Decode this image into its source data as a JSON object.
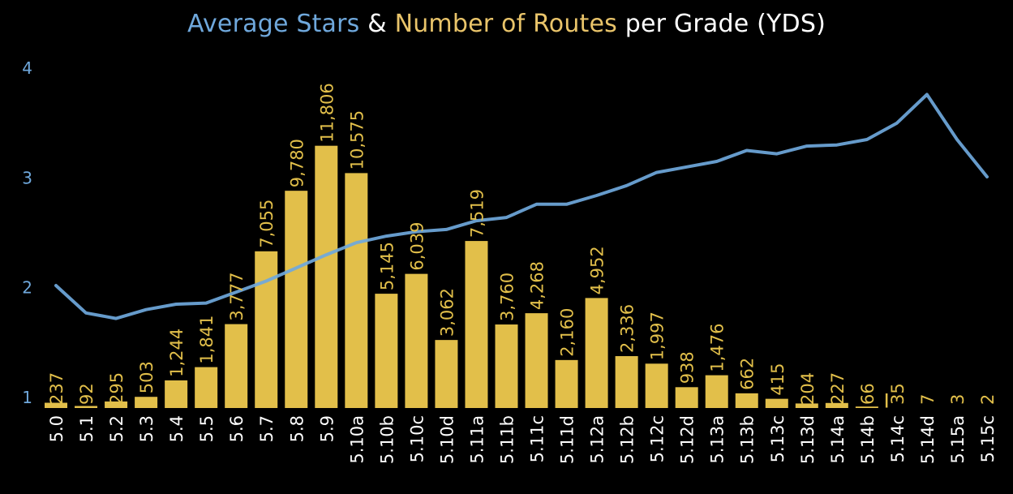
{
  "chart_data": {
    "type": "bar",
    "title_parts": [
      {
        "text": "Average Stars",
        "color": "#6fa8dc"
      },
      {
        "text": " & ",
        "color": "#ffffff"
      },
      {
        "text": "Number of Routes",
        "color": "#e9c46a"
      },
      {
        "text": " per Grade (YDS)",
        "color": "#ffffff"
      }
    ],
    "categories": [
      "5.0",
      "5.1",
      "5.2",
      "5.3",
      "5.4",
      "5.5",
      "5.6",
      "5.7",
      "5.8",
      "5.9",
      "5.10a",
      "5.10b",
      "5.10c",
      "5.10d",
      "5.11a",
      "5.11b",
      "5.11c",
      "5.11d",
      "5.12a",
      "5.12b",
      "5.12c",
      "5.12d",
      "5.13a",
      "5.13b",
      "5.13c",
      "5.13d",
      "5.14a",
      "5.14b",
      "5.14c",
      "5.14d",
      "5.15a",
      "5.15c"
    ],
    "series": [
      {
        "type": "bar",
        "values": [
          237,
          92,
          295,
          503,
          1244,
          1841,
          3777,
          7055,
          9780,
          11806,
          10575,
          5145,
          6039,
          3062,
          7519,
          3760,
          4268,
          2160,
          4952,
          2336,
          1997,
          938,
          1476,
          662,
          415,
          204,
          227,
          66,
          35,
          7,
          3,
          2
        ],
        "labels": [
          "237",
          "92",
          "295",
          "503",
          "1,244",
          "1,841",
          "3,777",
          "7,055",
          "9,780",
          "11,806",
          "10,575",
          "5,145",
          "6,039",
          "3,062",
          "7,519",
          "3,760",
          "4,268",
          "2,160",
          "4,952",
          "2,336",
          "1,997",
          "938",
          "1,476",
          "662",
          "415",
          "204",
          "227",
          "66",
          "35",
          "7",
          "3",
          "2"
        ],
        "color": "#e2bf4a"
      },
      {
        "type": "line",
        "values": [
          2.02,
          1.77,
          1.72,
          1.8,
          1.85,
          1.86,
          1.96,
          2.06,
          2.18,
          2.3,
          2.41,
          2.47,
          2.51,
          2.53,
          2.61,
          2.64,
          2.76,
          2.76,
          2.84,
          2.93,
          3.05,
          3.1,
          3.15,
          3.25,
          3.22,
          3.29,
          3.3,
          3.35,
          3.5,
          3.76,
          3.35,
          3.01
        ],
        "color": "#6fa8dc"
      }
    ],
    "y_axis": {
      "ticks": [
        "1",
        "2",
        "3",
        "4"
      ],
      "range": [
        1,
        4
      ],
      "color": "#6fa8dc"
    },
    "bar_value_max": 15300,
    "grid": false,
    "legend": "none"
  }
}
